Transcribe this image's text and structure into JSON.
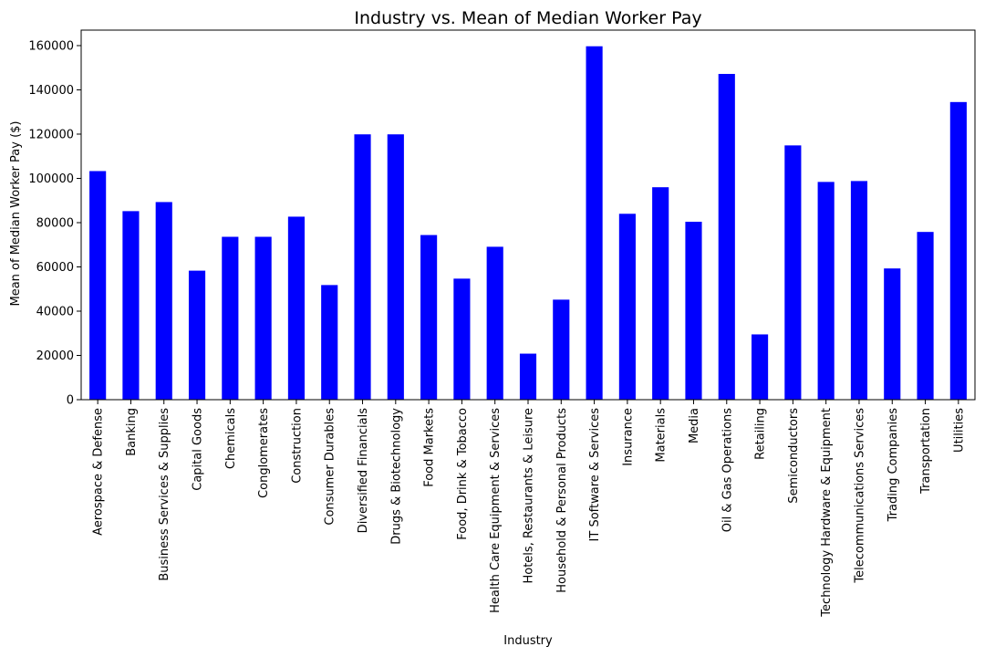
{
  "chart_data": {
    "type": "bar",
    "title": "Industry vs. Mean of Median Worker Pay",
    "xlabel": "Industry",
    "ylabel": "Mean of Median Worker Pay ($)",
    "ylim": [
      0,
      167000
    ],
    "yticks": [
      0,
      20000,
      40000,
      60000,
      80000,
      100000,
      120000,
      140000,
      160000
    ],
    "bar_color": "#0000ff",
    "grid": false,
    "legend": "none",
    "categories": [
      "Aerospace & Defense",
      "Banking",
      "Business Services & Supplies",
      "Capital Goods",
      "Chemicals",
      "Conglomerates",
      "Construction",
      "Consumer Durables",
      "Diversified Financials",
      "Drugs & Biotechnology",
      "Food Markets",
      "Food, Drink & Tobacco",
      "Health Care Equipment & Services",
      "Hotels, Restaurants & Leisure",
      "Household & Personal Products",
      "IT Software & Services",
      "Insurance",
      "Materials",
      "Media",
      "Oil & Gas Operations",
      "Retailing",
      "Semiconductors",
      "Technology Hardware & Equipment",
      "Telecommunications Services",
      "Trading Companies",
      "Transportation",
      "Utilities"
    ],
    "values": [
      103300,
      85200,
      89300,
      58300,
      73600,
      73600,
      82700,
      51800,
      119900,
      119900,
      74400,
      54700,
      69100,
      20800,
      45200,
      159700,
      84000,
      96000,
      80400,
      147200,
      29500,
      114900,
      98400,
      98800,
      59300,
      75800,
      134500
    ]
  }
}
